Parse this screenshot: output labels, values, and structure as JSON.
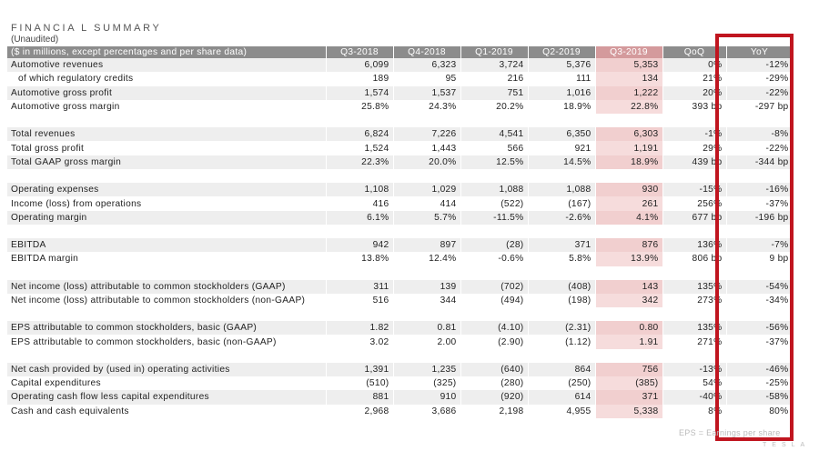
{
  "document": {
    "title": "FINANCIA L SUMMARY",
    "subtitle": "(Unaudited)",
    "footnote": "EPS = Earnings per share",
    "brand": "TESLA"
  },
  "table": {
    "headers": [
      "($ in millions, except percentages and per share data)",
      "Q3-2018",
      "Q4-2018",
      "Q1-2019",
      "Q2-2019",
      "Q3-2019",
      "QoQ",
      "YoY"
    ],
    "highlight_column": "Q3-2019",
    "emphasized_column": "YoY",
    "groups": [
      {
        "rows": [
          {
            "label": "Automotive revenues",
            "indent": false,
            "values": [
              "6,099",
              "6,323",
              "3,724",
              "5,376",
              "5,353",
              "0%",
              "-12%"
            ]
          },
          {
            "label": "of which regulatory credits",
            "indent": true,
            "values": [
              "189",
              "95",
              "216",
              "111",
              "134",
              "21%",
              "-29%"
            ]
          },
          {
            "label": "Automotive gross profit",
            "indent": false,
            "values": [
              "1,574",
              "1,537",
              "751",
              "1,016",
              "1,222",
              "20%",
              "-22%"
            ]
          },
          {
            "label": "Automotive gross margin",
            "indent": false,
            "values": [
              "25.8%",
              "24.3%",
              "20.2%",
              "18.9%",
              "22.8%",
              "393 bp",
              "-297 bp"
            ]
          }
        ]
      },
      {
        "rows": [
          {
            "label": "Total revenues",
            "indent": false,
            "values": [
              "6,824",
              "7,226",
              "4,541",
              "6,350",
              "6,303",
              "-1%",
              "-8%"
            ]
          },
          {
            "label": "Total gross profit",
            "indent": false,
            "values": [
              "1,524",
              "1,443",
              "566",
              "921",
              "1,191",
              "29%",
              "-22%"
            ]
          },
          {
            "label": "Total GAAP gross margin",
            "indent": false,
            "values": [
              "22.3%",
              "20.0%",
              "12.5%",
              "14.5%",
              "18.9%",
              "439 bp",
              "-344 bp"
            ]
          }
        ]
      },
      {
        "rows": [
          {
            "label": "Operating expenses",
            "indent": false,
            "values": [
              "1,108",
              "1,029",
              "1,088",
              "1,088",
              "930",
              "-15%",
              "-16%"
            ]
          },
          {
            "label": "Income (loss) from operations",
            "indent": false,
            "values": [
              "416",
              "414",
              "(522)",
              "(167)",
              "261",
              "256%",
              "-37%"
            ]
          },
          {
            "label": "Operating margin",
            "indent": false,
            "values": [
              "6.1%",
              "5.7%",
              "-11.5%",
              "-2.6%",
              "4.1%",
              "677 bp",
              "-196 bp"
            ]
          }
        ]
      },
      {
        "rows": [
          {
            "label": "EBITDA",
            "indent": false,
            "values": [
              "942",
              "897",
              "(28)",
              "371",
              "876",
              "136%",
              "-7%"
            ]
          },
          {
            "label": "EBITDA margin",
            "indent": false,
            "values": [
              "13.8%",
              "12.4%",
              "-0.6%",
              "5.8%",
              "13.9%",
              "806 bp",
              "9 bp"
            ]
          }
        ]
      },
      {
        "rows": [
          {
            "label": "Net income (loss) attributable to common stockholders (GAAP)",
            "indent": false,
            "values": [
              "311",
              "139",
              "(702)",
              "(408)",
              "143",
              "135%",
              "-54%"
            ]
          },
          {
            "label": "Net income (loss) attributable to common stockholders (non-GAAP)",
            "indent": false,
            "values": [
              "516",
              "344",
              "(494)",
              "(198)",
              "342",
              "273%",
              "-34%"
            ]
          }
        ]
      },
      {
        "rows": [
          {
            "label": "EPS attributable to common stockholders, basic (GAAP)",
            "indent": false,
            "values": [
              "1.82",
              "0.81",
              "(4.10)",
              "(2.31)",
              "0.80",
              "135%",
              "-56%"
            ]
          },
          {
            "label": "EPS attributable to common stockholders, basic (non-GAAP)",
            "indent": false,
            "values": [
              "3.02",
              "2.00",
              "(2.90)",
              "(1.12)",
              "1.91",
              "271%",
              "-37%"
            ]
          }
        ]
      },
      {
        "rows": [
          {
            "label": "Net cash provided by (used in) operating activities",
            "indent": false,
            "values": [
              "1,391",
              "1,235",
              "(640)",
              "864",
              "756",
              "-13%",
              "-46%"
            ]
          },
          {
            "label": "Capital expenditures",
            "indent": false,
            "values": [
              "(510)",
              "(325)",
              "(280)",
              "(250)",
              "(385)",
              "54%",
              "-25%"
            ]
          },
          {
            "label": "Operating cash flow less capital expenditures",
            "indent": false,
            "values": [
              "881",
              "910",
              "(920)",
              "614",
              "371",
              "-40%",
              "-58%"
            ]
          },
          {
            "label": "Cash and cash equivalents",
            "indent": false,
            "values": [
              "2,968",
              "3,686",
              "2,198",
              "4,955",
              "5,338",
              "8%",
              "80%"
            ]
          }
        ]
      }
    ]
  },
  "colors": {
    "header_bg": "#8c8c8c",
    "highlight_header_bg": "#d49a9c",
    "highlight_cell_bg": "#f6dcdc",
    "shade_row_bg": "#eeeeee",
    "red_box": "#c0151f"
  }
}
